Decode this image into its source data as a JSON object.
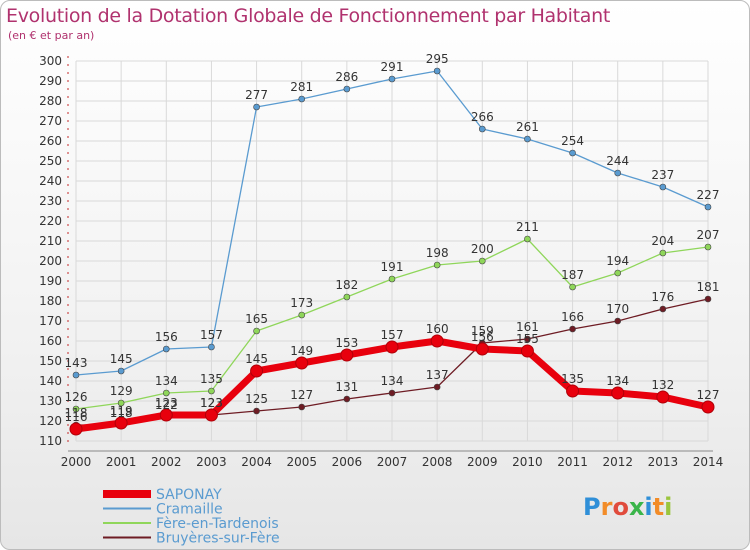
{
  "title": "Evolution de la Dotation Globale de Fonctionnement par Habitant",
  "subtitle": "(en € et par an)",
  "logo": {
    "letters": [
      "P",
      "r",
      "o",
      "x",
      "i",
      "t",
      "i"
    ],
    "colors": [
      "#2f8fd8",
      "#f28c28",
      "#e04b3c",
      "#3ab54a",
      "#2f8fd8",
      "#f28c28",
      "#9bc53d"
    ]
  },
  "chart_data": {
    "type": "line",
    "title": "Evolution de la Dotation Globale de Fonctionnement par Habitant",
    "subtitle": "(en € et par an)",
    "x": [
      2000,
      2001,
      2002,
      2003,
      2004,
      2005,
      2006,
      2007,
      2008,
      2009,
      2010,
      2011,
      2012,
      2013,
      2014
    ],
    "x_tick_labels": [
      "2000",
      "2001",
      "2002",
      "2003",
      "2004",
      "2005",
      "2006",
      "2007",
      "2008",
      "2009",
      "2010",
      "2011",
      "2012",
      "2013",
      "2014"
    ],
    "ylim": [
      110,
      300
    ],
    "y_ticks": [
      110,
      120,
      130,
      140,
      150,
      160,
      170,
      180,
      190,
      200,
      210,
      220,
      230,
      240,
      250,
      260,
      270,
      280,
      290,
      300
    ],
    "y_tick_labels": [
      "110",
      "120",
      "130",
      "140",
      "150",
      "160",
      "170",
      "180",
      "190",
      "200",
      "210",
      "220",
      "230",
      "240",
      "250",
      "260",
      "270",
      "280",
      "290",
      "300"
    ],
    "grid": true,
    "legend_position": "bottom-left",
    "series": [
      {
        "name": "SAPONAY",
        "color": "#e8000d",
        "values": [
          116,
          119,
          123,
          123,
          145,
          149,
          153,
          157,
          160,
          156,
          155,
          135,
          134,
          132,
          127
        ],
        "labels": [
          "116",
          "119",
          "123",
          "123",
          "145",
          "149",
          "153",
          "157",
          "160",
          "156",
          "155",
          "135",
          "134",
          "132",
          "127"
        ]
      },
      {
        "name": "Cramaille",
        "color": "#5a9bd0",
        "values": [
          143,
          145,
          156,
          157,
          277,
          281,
          286,
          291,
          295,
          266,
          261,
          254,
          244,
          237,
          227
        ],
        "labels": [
          "143",
          "145",
          "156",
          "157",
          "277",
          "281",
          "286",
          "291",
          "295",
          "266",
          "261",
          "254",
          "244",
          "237",
          "227"
        ]
      },
      {
        "name": "Fère-en-Tardenois",
        "color": "#8fd65a",
        "values": [
          126,
          129,
          134,
          135,
          165,
          173,
          182,
          191,
          198,
          200,
          211,
          187,
          194,
          204,
          207
        ],
        "labels": [
          "126",
          "129",
          "134",
          "135",
          "165",
          "173",
          "182",
          "191",
          "198",
          "200",
          "211",
          "187",
          "194",
          "204",
          "207"
        ]
      },
      {
        "name": "Bruyères-sur-Fère",
        "color": "#6e1c24",
        "values": [
          118,
          118,
          122,
          123,
          125,
          127,
          131,
          134,
          137,
          159,
          161,
          166,
          170,
          176,
          181
        ],
        "labels": [
          "118",
          "118",
          "122",
          "123",
          "125",
          "127",
          "131",
          "134",
          "137",
          "159",
          "161",
          "166",
          "170",
          "176",
          "181"
        ]
      }
    ]
  }
}
